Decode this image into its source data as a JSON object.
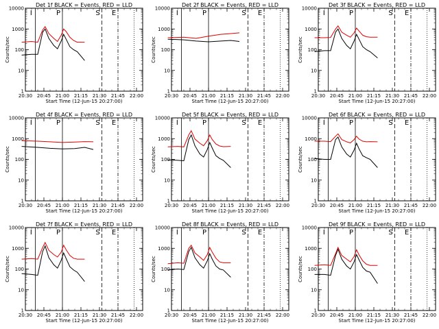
{
  "figure": {
    "x_ticks": [
      "20:30",
      "20:45",
      "21:00",
      "21:15",
      "21:30",
      "21:45",
      "22:00"
    ],
    "y_ticks": [
      "1",
      "10",
      "100",
      "1000",
      "10000"
    ],
    "ylabel": "Counts/sec",
    "xlabel": "Start Time (12-Jun-15 20:27:00)",
    "marker_labels": [
      "I",
      "P",
      "S",
      "E"
    ]
  },
  "chart_data": [
    {
      "type": "line",
      "title": "Det 1f BLACK = Events, RED = LLD",
      "xlabel": "Start Time (12-Jun-15 20:27:00)",
      "ylabel": "Counts/sec",
      "y_scale": "log",
      "ylim": [
        1,
        10000
      ],
      "x_range": [
        "20:30",
        "22:05"
      ],
      "markers": [
        {
          "label": "I",
          "time": "20:38",
          "style": "solid"
        },
        {
          "label": "P",
          "time": "21:00",
          "style": "solid"
        },
        {
          "label": "S",
          "time": "21:32",
          "style": "dashed"
        },
        {
          "label": "E",
          "time": "21:45",
          "style": "dash-dot"
        },
        {
          "label": "",
          "time": "21:58",
          "style": "dotted"
        }
      ],
      "series": [
        {
          "name": "Events",
          "color": "#000000",
          "x": [
            "20:27",
            "20:35",
            "20:40",
            "20:44",
            "20:46",
            "20:49",
            "20:53",
            "20:56",
            "20:59",
            "21:01",
            "21:03",
            "21:06",
            "21:09",
            "21:12",
            "21:18"
          ],
          "values": [
            55,
            60,
            60,
            700,
            1000,
            350,
            160,
            110,
            260,
            550,
            320,
            140,
            100,
            80,
            30
          ]
        },
        {
          "name": "LLD",
          "color": "#dd0000",
          "x": [
            "20:27",
            "20:35",
            "20:40",
            "20:44",
            "20:46",
            "20:49",
            "20:53",
            "20:56",
            "20:59",
            "21:01",
            "21:03",
            "21:06",
            "21:09",
            "21:12",
            "21:18"
          ],
          "values": [
            230,
            250,
            230,
            900,
            1300,
            600,
            350,
            250,
            500,
            1000,
            750,
            400,
            280,
            230,
            230
          ]
        }
      ]
    },
    {
      "type": "line",
      "title": "Det 2f BLACK = Events, RED = LLD",
      "xlabel": "Start Time (12-Jun-15 20:27:00)",
      "ylabel": "Counts/sec",
      "y_scale": "log",
      "ylim": [
        1,
        10000
      ],
      "x_range": [
        "20:30",
        "22:05"
      ],
      "markers": [
        {
          "label": "I",
          "time": "20:38",
          "style": "solid"
        },
        {
          "label": "P",
          "time": "21:00",
          "style": "solid"
        },
        {
          "label": "S",
          "time": "21:32",
          "style": "dashed"
        },
        {
          "label": "E",
          "time": "21:45",
          "style": "dash-dot"
        },
        {
          "label": "",
          "time": "21:58",
          "style": "dotted"
        }
      ],
      "series": [
        {
          "name": "Events",
          "color": "#000000",
          "x": [
            "20:27",
            "20:40",
            "20:50",
            "21:00",
            "21:10",
            "21:18",
            "21:25"
          ],
          "values": [
            320,
            300,
            260,
            240,
            260,
            280,
            250
          ]
        },
        {
          "name": "LLD",
          "color": "#dd0000",
          "x": [
            "20:27",
            "20:40",
            "20:50",
            "21:00",
            "21:10",
            "21:18",
            "21:25"
          ],
          "values": [
            380,
            400,
            350,
            450,
            550,
            600,
            650
          ]
        }
      ]
    },
    {
      "type": "line",
      "title": "Det 3f BLACK = Events, RED = LLD",
      "xlabel": "Start Time (12-Jun-15 20:27:00)",
      "ylabel": "Counts/sec",
      "y_scale": "log",
      "ylim": [
        1,
        10000
      ],
      "x_range": [
        "20:30",
        "22:05"
      ],
      "markers": [
        {
          "label": "I",
          "time": "20:38",
          "style": "solid"
        },
        {
          "label": "P",
          "time": "21:00",
          "style": "solid"
        },
        {
          "label": "S",
          "time": "21:32",
          "style": "dashed"
        },
        {
          "label": "E",
          "time": "21:45",
          "style": "dash-dot"
        },
        {
          "label": "",
          "time": "21:58",
          "style": "dotted"
        }
      ],
      "series": [
        {
          "name": "Events",
          "color": "#000000",
          "x": [
            "20:27",
            "20:35",
            "20:40",
            "20:44",
            "20:46",
            "20:49",
            "20:53",
            "20:56",
            "20:59",
            "21:01",
            "21:03",
            "21:06",
            "21:09",
            "21:12",
            "21:18"
          ],
          "values": [
            80,
            90,
            90,
            700,
            1000,
            350,
            160,
            110,
            260,
            550,
            320,
            140,
            100,
            80,
            40
          ]
        },
        {
          "name": "LLD",
          "color": "#dd0000",
          "x": [
            "20:27",
            "20:35",
            "20:40",
            "20:44",
            "20:46",
            "20:49",
            "20:53",
            "20:56",
            "20:59",
            "21:01",
            "21:03",
            "21:06",
            "21:09",
            "21:12",
            "21:18"
          ],
          "values": [
            380,
            380,
            390,
            1000,
            1400,
            700,
            500,
            400,
            650,
            1100,
            800,
            500,
            420,
            400,
            400
          ]
        }
      ]
    },
    {
      "type": "line",
      "title": "Det 4f BLACK = Events, RED = LLD",
      "xlabel": "Start Time (12-Jun-15 20:27:00)",
      "ylabel": "Counts/sec",
      "y_scale": "log",
      "ylim": [
        1,
        10000
      ],
      "x_range": [
        "20:30",
        "22:05"
      ],
      "markers": [
        {
          "label": "I",
          "time": "20:38",
          "style": "solid"
        },
        {
          "label": "P",
          "time": "21:00",
          "style": "solid"
        },
        {
          "label": "S",
          "time": "21:32",
          "style": "dashed"
        },
        {
          "label": "E",
          "time": "21:45",
          "style": "dash-dot"
        },
        {
          "label": "",
          "time": "21:58",
          "style": "dotted"
        }
      ],
      "series": [
        {
          "name": "Events",
          "color": "#000000",
          "x": [
            "20:27",
            "20:40",
            "20:50",
            "21:00",
            "21:10",
            "21:18",
            "21:25"
          ],
          "values": [
            420,
            380,
            340,
            320,
            330,
            380,
            300
          ]
        },
        {
          "name": "LLD",
          "color": "#dd0000",
          "x": [
            "20:27",
            "20:40",
            "20:50",
            "21:00",
            "21:10",
            "21:18",
            "21:25"
          ],
          "values": [
            800,
            750,
            700,
            650,
            680,
            720,
            700
          ]
        }
      ]
    },
    {
      "type": "line",
      "title": "Det 5f BLACK = Events, RED = LLD",
      "xlabel": "Start Time (12-Jun-15 20:27:00)",
      "ylabel": "Counts/sec",
      "y_scale": "log",
      "ylim": [
        1,
        10000
      ],
      "x_range": [
        "20:30",
        "22:05"
      ],
      "markers": [
        {
          "label": "I",
          "time": "20:38",
          "style": "solid"
        },
        {
          "label": "P",
          "time": "21:00",
          "style": "solid"
        },
        {
          "label": "S",
          "time": "21:32",
          "style": "dashed"
        },
        {
          "label": "E",
          "time": "21:45",
          "style": "dash-dot"
        },
        {
          "label": "",
          "time": "21:58",
          "style": "dotted"
        }
      ],
      "series": [
        {
          "name": "Events",
          "color": "#000000",
          "x": [
            "20:27",
            "20:35",
            "20:40",
            "20:44",
            "20:46",
            "20:49",
            "20:53",
            "20:56",
            "20:59",
            "21:01",
            "21:03",
            "21:06",
            "21:09",
            "21:12",
            "21:18"
          ],
          "values": [
            95,
            90,
            85,
            900,
            1500,
            450,
            180,
            130,
            300,
            650,
            350,
            150,
            110,
            90,
            40
          ]
        },
        {
          "name": "LLD",
          "color": "#dd0000",
          "x": [
            "20:27",
            "20:35",
            "20:40",
            "20:44",
            "20:46",
            "20:49",
            "20:53",
            "20:56",
            "20:59",
            "21:01",
            "21:03",
            "21:06",
            "21:09",
            "21:12",
            "21:18"
          ],
          "values": [
            400,
            420,
            400,
            1500,
            2400,
            950,
            600,
            450,
            800,
            1500,
            900,
            550,
            440,
            410,
            420
          ]
        }
      ]
    },
    {
      "type": "line",
      "title": "Det 6f BLACK = Events, RED = LLD",
      "xlabel": "Start Time (12-Jun-15 20:27:00)",
      "ylabel": "Counts/sec",
      "y_scale": "log",
      "ylim": [
        1,
        10000
      ],
      "x_range": [
        "20:30",
        "22:05"
      ],
      "markers": [
        {
          "label": "I",
          "time": "20:38",
          "style": "solid"
        },
        {
          "label": "P",
          "time": "21:00",
          "style": "solid"
        },
        {
          "label": "S",
          "time": "21:32",
          "style": "dashed"
        },
        {
          "label": "E",
          "time": "21:45",
          "style": "dash-dot"
        },
        {
          "label": "",
          "time": "21:58",
          "style": "dotted"
        }
      ],
      "series": [
        {
          "name": "Events",
          "color": "#000000",
          "x": [
            "20:27",
            "20:35",
            "20:40",
            "20:44",
            "20:46",
            "20:49",
            "20:53",
            "20:56",
            "20:59",
            "21:01",
            "21:03",
            "21:06",
            "21:09",
            "21:12",
            "21:18"
          ],
          "values": [
            110,
            100,
            100,
            900,
            1200,
            400,
            180,
            130,
            280,
            600,
            320,
            150,
            120,
            100,
            40
          ]
        },
        {
          "name": "LLD",
          "color": "#dd0000",
          "x": [
            "20:27",
            "20:35",
            "20:40",
            "20:44",
            "20:46",
            "20:49",
            "20:53",
            "20:56",
            "20:59",
            "21:01",
            "21:03",
            "21:06",
            "21:09",
            "21:12",
            "21:18"
          ],
          "values": [
            750,
            750,
            720,
            1300,
            1700,
            900,
            700,
            620,
            900,
            1300,
            950,
            750,
            700,
            720,
            700
          ]
        }
      ]
    },
    {
      "type": "line",
      "title": "Det 7f BLACK = Events, RED = LLD",
      "xlabel": "Start Time (12-Jun-15 20:27:00)",
      "ylabel": "Counts/sec",
      "y_scale": "log",
      "ylim": [
        1,
        10000
      ],
      "x_range": [
        "20:30",
        "22:05"
      ],
      "markers": [
        {
          "label": "I",
          "time": "20:38",
          "style": "solid"
        },
        {
          "label": "P",
          "time": "21:00",
          "style": "solid"
        },
        {
          "label": "S",
          "time": "21:32",
          "style": "dashed"
        },
        {
          "label": "E",
          "time": "21:45",
          "style": "dash-dot"
        },
        {
          "label": "",
          "time": "21:58",
          "style": "dotted"
        }
      ],
      "series": [
        {
          "name": "Events",
          "color": "#000000",
          "x": [
            "20:27",
            "20:35",
            "20:40",
            "20:44",
            "20:46",
            "20:49",
            "20:53",
            "20:56",
            "20:59",
            "21:01",
            "21:03",
            "21:06",
            "21:09",
            "21:12",
            "21:18"
          ],
          "values": [
            60,
            55,
            50,
            700,
            1300,
            350,
            160,
            110,
            260,
            600,
            320,
            130,
            90,
            70,
            25
          ]
        },
        {
          "name": "LLD",
          "color": "#dd0000",
          "x": [
            "20:27",
            "20:35",
            "20:40",
            "20:44",
            "20:46",
            "20:49",
            "20:53",
            "20:56",
            "20:59",
            "21:01",
            "21:03",
            "21:06",
            "21:09",
            "21:12",
            "21:18"
          ],
          "values": [
            300,
            320,
            300,
            1100,
            1900,
            800,
            500,
            380,
            650,
            1400,
            850,
            450,
            330,
            300,
            300
          ]
        }
      ]
    },
    {
      "type": "line",
      "title": "Det 8f BLACK = Events, RED = LLD",
      "xlabel": "Start Time (12-Jun-15 20:27:00)",
      "ylabel": "Counts/sec",
      "y_scale": "log",
      "ylim": [
        1,
        10000
      ],
      "x_range": [
        "20:30",
        "22:05"
      ],
      "markers": [
        {
          "label": "I",
          "time": "20:38",
          "style": "solid"
        },
        {
          "label": "P",
          "time": "21:00",
          "style": "solid"
        },
        {
          "label": "S",
          "time": "21:32",
          "style": "dashed"
        },
        {
          "label": "E",
          "time": "21:45",
          "style": "dash-dot"
        },
        {
          "label": "",
          "time": "21:58",
          "style": "dotted"
        }
      ],
      "series": [
        {
          "name": "Events",
          "color": "#000000",
          "x": [
            "20:27",
            "20:35",
            "20:40",
            "20:44",
            "20:46",
            "20:49",
            "20:53",
            "20:56",
            "20:59",
            "21:01",
            "21:03",
            "21:06",
            "21:09",
            "21:12",
            "21:18"
          ],
          "values": [
            90,
            100,
            95,
            700,
            1100,
            350,
            160,
            110,
            250,
            550,
            300,
            140,
            100,
            90,
            40
          ]
        },
        {
          "name": "LLD",
          "color": "#dd0000",
          "x": [
            "20:27",
            "20:35",
            "20:40",
            "20:44",
            "20:46",
            "20:49",
            "20:53",
            "20:56",
            "20:59",
            "21:01",
            "21:03",
            "21:06",
            "21:09",
            "21:12",
            "21:18"
          ],
          "values": [
            180,
            200,
            190,
            1000,
            1400,
            600,
            380,
            260,
            500,
            1100,
            650,
            330,
            220,
            200,
            200
          ]
        }
      ]
    },
    {
      "type": "line",
      "title": "Det 9f BLACK = Events, RED = LLD",
      "xlabel": "Start Time (12-Jun-15 20:27:00)",
      "ylabel": "Counts/sec",
      "y_scale": "log",
      "ylim": [
        1,
        10000
      ],
      "x_range": [
        "20:30",
        "22:05"
      ],
      "markers": [
        {
          "label": "I",
          "time": "20:38",
          "style": "solid"
        },
        {
          "label": "P",
          "time": "21:00",
          "style": "solid"
        },
        {
          "label": "S",
          "time": "21:32",
          "style": "dashed"
        },
        {
          "label": "E",
          "time": "21:45",
          "style": "dash-dot"
        },
        {
          "label": "",
          "time": "21:58",
          "style": "dotted"
        }
      ],
      "series": [
        {
          "name": "Events",
          "color": "#000000",
          "x": [
            "20:27",
            "20:35",
            "20:40",
            "20:44",
            "20:46",
            "20:49",
            "20:53",
            "20:56",
            "20:59",
            "21:01",
            "21:03",
            "21:06",
            "21:09",
            "21:12",
            "21:18"
          ],
          "values": [
            55,
            55,
            50,
            450,
            900,
            300,
            140,
            100,
            220,
            500,
            280,
            120,
            80,
            70,
            20
          ]
        },
        {
          "name": "LLD",
          "color": "#dd0000",
          "x": [
            "20:27",
            "20:35",
            "20:40",
            "20:44",
            "20:46",
            "20:49",
            "20:53",
            "20:56",
            "20:59",
            "21:01",
            "21:03",
            "21:06",
            "21:09",
            "21:12",
            "21:18"
          ],
          "values": [
            150,
            160,
            150,
            550,
            1100,
            450,
            300,
            220,
            400,
            850,
            480,
            250,
            170,
            150,
            150
          ]
        }
      ]
    }
  ]
}
